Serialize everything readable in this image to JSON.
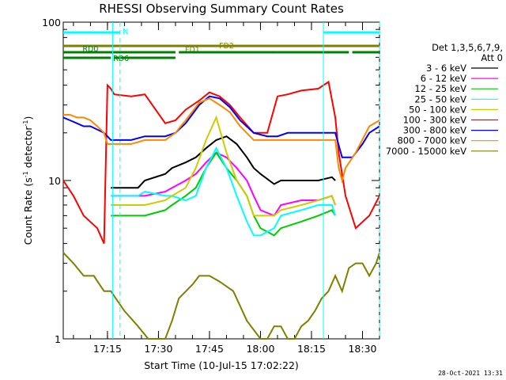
{
  "chart_data": {
    "type": "line",
    "title": "RHESSI Observing Summary Count Rates",
    "xlabel": "Start Time (10-Jul-15 17:02:22)",
    "ylabel": "Count Rate (s",
    "ylabel_sup": "-1",
    "ylabel_tail": " detector",
    "ylabel_sup2": "-1",
    "ylabel_end": ")",
    "y_scale": "log",
    "ylim": [
      1,
      100
    ],
    "y_ticks": [
      {
        "v": 1,
        "label": "1"
      },
      {
        "v": 10,
        "label": "10"
      },
      {
        "v": 100,
        "label": "100"
      }
    ],
    "xlim_minutes": [
      0,
      93
    ],
    "x_ticks": [
      {
        "m": 13,
        "label": "17:15"
      },
      {
        "m": 28,
        "label": "17:30"
      },
      {
        "m": 43,
        "label": "17:45"
      },
      {
        "m": 58,
        "label": "18:00"
      },
      {
        "m": 73,
        "label": "18:15"
      },
      {
        "m": 88,
        "label": "18:30"
      }
    ],
    "legend_header": [
      "Det 1,3,5,6,7,9,",
      "Att 0"
    ],
    "series": [
      {
        "name": "3 - 6 keV",
        "color": "#000000",
        "x": [
          14,
          22,
          24,
          30,
          32,
          36,
          39,
          42,
          45,
          48,
          51,
          54,
          56,
          58,
          62,
          64,
          70,
          75,
          79,
          80
        ],
        "y": [
          9,
          9,
          10,
          11,
          12,
          13,
          14,
          16,
          18,
          19,
          17,
          14,
          12,
          11,
          9.5,
          10,
          10,
          10,
          10.5,
          10
        ]
      },
      {
        "name": "6 - 12 keV",
        "color": "#ff00ff",
        "x": [
          14,
          22,
          24,
          30,
          32,
          36,
          39,
          42,
          45,
          48,
          51,
          54,
          56,
          58,
          62,
          64,
          70,
          75,
          79,
          80
        ],
        "y": [
          8,
          8,
          8,
          8.5,
          9,
          10,
          11,
          13,
          15,
          14,
          12,
          10,
          8,
          6.5,
          6,
          7,
          7.5,
          7.5,
          8,
          7
        ]
      },
      {
        "name": "12 - 25 keV",
        "color": "#00cc00",
        "x": [
          14,
          22,
          24,
          30,
          32,
          36,
          39,
          42,
          45,
          48,
          51,
          54,
          56,
          58,
          62,
          64,
          70,
          75,
          79,
          80
        ],
        "y": [
          6,
          6,
          6,
          6.5,
          7,
          8,
          9,
          12,
          15,
          12,
          10,
          8,
          6,
          5,
          4.5,
          5,
          5.5,
          6,
          6.5,
          6
        ]
      },
      {
        "name": "25 - 50 keV",
        "color": "#00ffff",
        "x": [
          14,
          22,
          24,
          30,
          32,
          36,
          39,
          42,
          45,
          48,
          51,
          54,
          56,
          58,
          62,
          64,
          70,
          75,
          79,
          80
        ],
        "y": [
          8,
          8,
          8.5,
          8,
          8,
          7.5,
          8,
          12,
          16,
          12,
          8,
          5.5,
          4.5,
          4.5,
          5,
          6,
          6.5,
          7,
          7,
          6
        ]
      },
      {
        "name": "50 - 100 keV",
        "color": "#cccc00",
        "x": [
          14,
          22,
          24,
          30,
          32,
          36,
          39,
          42,
          45,
          48,
          51,
          54,
          56,
          58,
          62,
          64,
          70,
          75,
          79,
          80
        ],
        "y": [
          7,
          7,
          7,
          7.5,
          8,
          9,
          12,
          18,
          25,
          15,
          10,
          8,
          6,
          6,
          6,
          6.5,
          7,
          7.5,
          8,
          7
        ]
      },
      {
        "name": "100 - 300 keV",
        "color": "#ff0000",
        "x": [
          0,
          3,
          6,
          10,
          12,
          13,
          14,
          15,
          20,
          24,
          30,
          33,
          36,
          40,
          43,
          46,
          49,
          52,
          56,
          60,
          63,
          66,
          70,
          75,
          78,
          80,
          81,
          83,
          86,
          90,
          93
        ],
        "y": [
          10,
          8,
          6,
          5,
          4,
          40,
          38,
          35,
          34,
          35,
          23,
          24,
          28,
          32,
          36,
          34,
          30,
          25,
          20,
          20,
          34,
          35,
          37,
          38,
          42,
          25,
          15,
          8,
          5,
          6,
          8
        ]
      },
      {
        "name": "300 - 800 keV",
        "color": "#0000ff",
        "x": [
          0,
          2,
          4,
          6,
          8,
          10,
          12,
          13,
          14,
          20,
          24,
          30,
          33,
          36,
          40,
          43,
          46,
          49,
          52,
          56,
          60,
          63,
          66,
          70,
          75,
          78,
          80,
          82,
          85,
          88,
          90,
          93
        ],
        "y": [
          25,
          24,
          23,
          22,
          22,
          21,
          20,
          19,
          18,
          18,
          19,
          19,
          20,
          23,
          30,
          34,
          33,
          29,
          24,
          20,
          19,
          19,
          20,
          20,
          20,
          20,
          20,
          14,
          14,
          17,
          20,
          22
        ]
      },
      {
        "name": "800 - 7000 keV",
        "color": "#ff8800",
        "x": [
          0,
          2,
          4,
          6,
          8,
          10,
          12,
          13,
          14,
          20,
          24,
          30,
          33,
          36,
          40,
          43,
          46,
          49,
          52,
          56,
          60,
          63,
          66,
          70,
          75,
          78,
          80,
          81,
          82,
          83,
          86,
          90,
          93
        ],
        "y": [
          26,
          26,
          25,
          25,
          24,
          22,
          20,
          17,
          17,
          17,
          18,
          18,
          20,
          24,
          31,
          33,
          30,
          27,
          22,
          18,
          18,
          18,
          18,
          18,
          18,
          18,
          18,
          12,
          10,
          12,
          15,
          22,
          24
        ]
      },
      {
        "name": "7000 - 15000 keV",
        "color": "#808000",
        "x": [
          0,
          3,
          6,
          9,
          12,
          14,
          18,
          22,
          25,
          30,
          32,
          34,
          38,
          40,
          43,
          46,
          50,
          54,
          58,
          60,
          62,
          64,
          66,
          68,
          70,
          72,
          74,
          76,
          78,
          80,
          82,
          84,
          86,
          88,
          90,
          92,
          93
        ],
        "y": [
          3.5,
          3,
          2.5,
          2.5,
          2,
          2,
          1.5,
          1.2,
          1,
          1,
          1.3,
          1.8,
          2.2,
          2.5,
          2.5,
          2.3,
          2,
          1.3,
          1,
          1,
          1.2,
          1.2,
          1,
          1,
          1.2,
          1.3,
          1.5,
          1.8,
          2,
          2.5,
          2,
          2.8,
          3,
          3,
          2.5,
          3,
          3.5
        ]
      }
    ],
    "bars": [
      {
        "label": "N",
        "color": "#00ffff",
        "segments": [
          [
            0,
            16.7
          ],
          [
            76.5,
            93
          ]
        ]
      },
      {
        "label": "FD1",
        "color": "#808000",
        "segments": [
          [
            30,
            47
          ]
        ]
      },
      {
        "label": "FD2",
        "color": "#808000",
        "segments": [
          [
            0,
            93
          ]
        ]
      },
      {
        "label": "RD0",
        "color": "#008000",
        "segments": [
          [
            0,
            33
          ],
          [
            34,
            63
          ],
          [
            63,
            84
          ],
          [
            85,
            93
          ]
        ]
      },
      {
        "label": "RD6",
        "color": "#008000",
        "segments": [
          [
            0,
            14
          ],
          [
            15,
            33
          ]
        ]
      }
    ],
    "vertical_markers": {
      "solid": [
        14.5,
        76.5
      ],
      "dashed": [
        16.7,
        93
      ]
    }
  },
  "footer": {
    "timestamp": "28-Oct-2021 13:31"
  }
}
